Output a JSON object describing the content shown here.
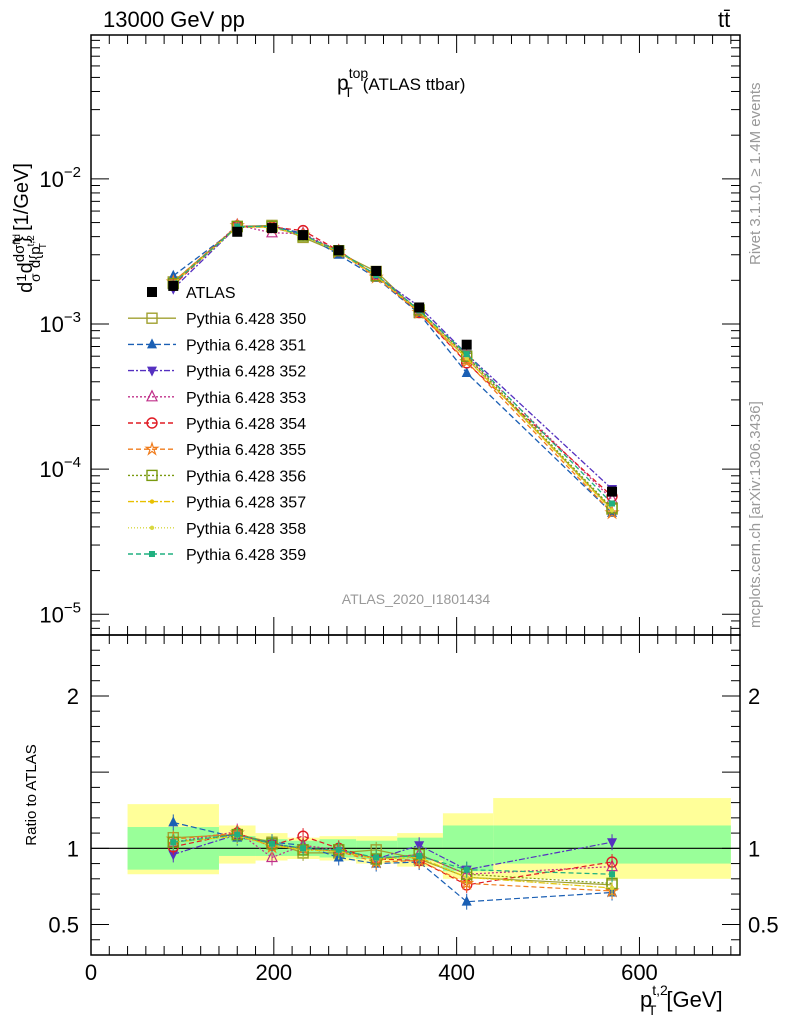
{
  "header": {
    "energy_label": "13000 GeV pp",
    "process_label": "tt̄"
  },
  "plot_title": {
    "main": "p",
    "sub": "T",
    "sup": "top",
    "suffix": "(ATLAS ttbar)"
  },
  "watermark": "ATLAS_2020_I1801434",
  "side_text": {
    "rivet": "Rivet 3.1.10, ≥ 1.4M events",
    "mcplots": "mcplots.cern.ch [arXiv:1306.3436]"
  },
  "ylabel_main": {
    "a": "d",
    "b": "1",
    "c": "σ",
    "d": "d",
    "e": "dσ",
    "f": "fid",
    "g": "d{p",
    "h": "t,2",
    "i": "T",
    "j": "} [1/GeV]"
  },
  "ylabel_ratio": "Ratio to ATLAS",
  "xlabel": {
    "p": "p",
    "sup": "t,2",
    "sub": "T",
    "unit": "[GeV]"
  },
  "colors": {
    "band_inner": "#99ff99",
    "band_outer": "#ffff99"
  },
  "chart_data": [
    {
      "type": "line",
      "panel": "main",
      "yscale": "log",
      "xlim": [
        0,
        710
      ],
      "ylim": [
        7.2e-06,
        0.098
      ],
      "y_tick_labels": [
        {
          "base": "10",
          "exp": "−5",
          "value": 1e-05
        },
        {
          "base": "10",
          "exp": "−4",
          "value": 0.0001
        },
        {
          "base": "10",
          "exp": "−3",
          "value": 0.001
        },
        {
          "base": "10",
          "exp": "−2",
          "value": 0.01
        }
      ],
      "x": [
        90,
        160,
        198,
        232,
        271,
        312,
        359,
        411,
        570
      ],
      "x_edges": [
        40,
        140,
        180,
        215,
        250,
        290,
        335,
        385,
        440,
        700
      ],
      "data": {
        "name": "ATLAS",
        "values": [
          0.00183,
          0.00432,
          0.00458,
          0.0041,
          0.00322,
          0.00232,
          0.0013,
          0.00072,
          7e-05
        ],
        "color": "#000000"
      },
      "series": [
        {
          "name": "Pythia 6.428 350",
          "values": [
            0.00195,
            0.0047,
            0.00478,
            0.00395,
            0.0031,
            0.0023,
            0.0012,
            0.00058,
            5.3e-05
          ],
          "color": "#a0a030",
          "dash": "",
          "marker": "square-open"
        },
        {
          "name": "Pythia 6.428 351",
          "values": [
            0.00215,
            0.0046,
            0.00475,
            0.0042,
            0.003,
            0.00208,
            0.00118,
            0.00046,
            5e-05
          ],
          "color": "#1a5fb4",
          "dash": "6,3",
          "marker": "triangle-up"
        },
        {
          "name": "Pythia 6.428 352",
          "values": [
            0.00175,
            0.0047,
            0.0047,
            0.0041,
            0.00315,
            0.00215,
            0.00132,
            0.00062,
            7.3e-05
          ],
          "color": "#5530c0",
          "dash": "6,2,2,2",
          "marker": "triangle-down"
        },
        {
          "name": "Pythia 6.428 353",
          "values": [
            0.0019,
            0.0048,
            0.00425,
            0.0042,
            0.0032,
            0.00215,
            0.00125,
            0.0006,
            6.2e-05
          ],
          "color": "#c0308a",
          "dash": "2,2",
          "marker": "triangle-open"
        },
        {
          "name": "Pythia 6.428 354",
          "values": [
            0.00185,
            0.00475,
            0.00465,
            0.0044,
            0.0032,
            0.00215,
            0.0012,
            0.00054,
            6.5e-05
          ],
          "color": "#e01b24",
          "dash": "5,3",
          "marker": "circle-open"
        },
        {
          "name": "Pythia 6.428 355",
          "values": [
            0.00195,
            0.00475,
            0.0046,
            0.0041,
            0.00315,
            0.0021,
            0.0012,
            0.00055,
            5e-05
          ],
          "color": "#f07c1c",
          "dash": "5,3",
          "marker": "star-open"
        },
        {
          "name": "Pythia 6.428 356",
          "values": [
            0.0019,
            0.0047,
            0.0047,
            0.00405,
            0.0032,
            0.00215,
            0.00125,
            0.0006,
            5.4e-05
          ],
          "color": "#7a9a10",
          "dash": "2,2",
          "marker": "square-open"
        },
        {
          "name": "Pythia 6.428 357",
          "values": [
            0.0019,
            0.00465,
            0.00465,
            0.00405,
            0.00315,
            0.00215,
            0.00122,
            0.00058,
            5.2e-05
          ],
          "color": "#e8c000",
          "dash": "6,2,2,2",
          "marker": "dot"
        },
        {
          "name": "Pythia 6.428 358",
          "values": [
            0.0019,
            0.00465,
            0.00465,
            0.00405,
            0.00315,
            0.00215,
            0.00122,
            0.00058,
            5.2e-05
          ],
          "color": "#d8d840",
          "dash": "1,2",
          "marker": "dot"
        },
        {
          "name": "Pythia 6.428 359",
          "values": [
            0.0019,
            0.0047,
            0.0047,
            0.0041,
            0.00318,
            0.00218,
            0.00124,
            0.00062,
            5.8e-05
          ],
          "color": "#20b080",
          "dash": "5,3",
          "marker": "square"
        }
      ]
    },
    {
      "type": "line",
      "panel": "ratio",
      "xlim": [
        0,
        710
      ],
      "ylim": [
        0.3,
        2.4
      ],
      "y_ticks": [
        0.5,
        1,
        2
      ],
      "y_tick_labels": [
        "0.5",
        "1",
        "2"
      ],
      "x_ticks": [
        0,
        200,
        400,
        600
      ],
      "x_tick_labels": [
        "0",
        "200",
        "400",
        "600"
      ],
      "x": [
        90,
        160,
        198,
        232,
        271,
        312,
        359,
        411,
        570
      ],
      "band_inner": [
        [
          0.86,
          1.14
        ],
        [
          0.95,
          1.08
        ],
        [
          0.95,
          1.06
        ],
        [
          0.95,
          1.05
        ],
        [
          0.94,
          1.06
        ],
        [
          0.93,
          1.05
        ],
        [
          0.92,
          1.07
        ],
        [
          0.85,
          1.15
        ],
        [
          0.9,
          1.15
        ]
      ],
      "band_outer": [
        [
          0.83,
          1.29
        ],
        [
          0.9,
          1.15
        ],
        [
          0.92,
          1.1
        ],
        [
          0.93,
          1.07
        ],
        [
          0.92,
          1.08
        ],
        [
          0.9,
          1.08
        ],
        [
          0.88,
          1.1
        ],
        [
          0.8,
          1.23
        ],
        [
          0.8,
          1.33
        ]
      ],
      "series": [
        {
          "name": "Pythia 6.428 350",
          "values": [
            1.07,
            1.09,
            1.04,
            0.97,
            0.97,
            0.99,
            0.93,
            0.81,
            0.76
          ]
        },
        {
          "name": "Pythia 6.428 351",
          "values": [
            1.17,
            1.07,
            1.04,
            1.02,
            0.94,
            0.9,
            0.91,
            0.65,
            0.71
          ]
        },
        {
          "name": "Pythia 6.428 352",
          "values": [
            0.96,
            1.09,
            1.03,
            1.0,
            0.98,
            0.93,
            1.02,
            0.86,
            1.04
          ]
        },
        {
          "name": "Pythia 6.428 353",
          "values": [
            1.04,
            1.11,
            0.94,
            1.02,
            0.99,
            0.93,
            0.96,
            0.83,
            0.88
          ]
        },
        {
          "name": "Pythia 6.428 354",
          "values": [
            1.01,
            1.1,
            1.02,
            1.08,
            1.0,
            0.93,
            0.92,
            0.76,
            0.91
          ]
        },
        {
          "name": "Pythia 6.428 355",
          "values": [
            1.06,
            1.1,
            1.01,
            1.0,
            0.98,
            0.91,
            0.92,
            0.77,
            0.72
          ]
        },
        {
          "name": "Pythia 6.428 356",
          "values": [
            1.04,
            1.09,
            1.03,
            0.99,
            0.99,
            0.93,
            0.96,
            0.83,
            0.77
          ]
        },
        {
          "name": "Pythia 6.428 357",
          "values": [
            1.04,
            1.08,
            1.02,
            0.99,
            0.98,
            0.93,
            0.94,
            0.81,
            0.74
          ]
        },
        {
          "name": "Pythia 6.428 358",
          "values": [
            1.04,
            1.08,
            1.02,
            0.99,
            0.98,
            0.93,
            0.94,
            0.81,
            0.74
          ]
        },
        {
          "name": "Pythia 6.428 359",
          "values": [
            1.04,
            1.09,
            1.03,
            1.0,
            0.99,
            0.94,
            0.95,
            0.86,
            0.83
          ]
        }
      ]
    }
  ]
}
